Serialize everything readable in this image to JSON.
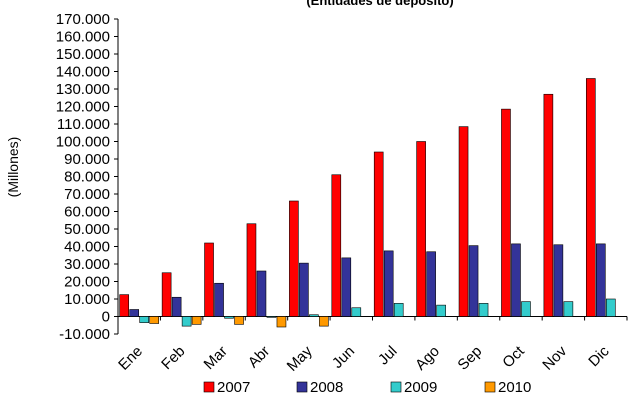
{
  "chart_data": {
    "type": "bar",
    "title": "(Entidades de depósito)",
    "ylabel": "(Millones)",
    "xlabel": "",
    "categories": [
      "Ene",
      "Feb",
      "Mar",
      "Abr",
      "May",
      "Jun",
      "Jul",
      "Ago",
      "Sep",
      "Oct",
      "Nov",
      "Dic"
    ],
    "yticks": [
      "-10.000",
      "0",
      "10.000",
      "20.000",
      "30.000",
      "40.000",
      "50.000",
      "60.000",
      "70.000",
      "80.000",
      "90.000",
      "100.000",
      "110.000",
      "120.000",
      "130.000",
      "140.000",
      "150.000",
      "160.000",
      "170.000"
    ],
    "ylim": [
      -10000,
      170000
    ],
    "grid": false,
    "legend_position": "bottom",
    "series": [
      {
        "name": "2007",
        "color": "#ff0000",
        "values": [
          12500,
          25000,
          42000,
          53000,
          66000,
          81000,
          94000,
          100000,
          108500,
          118500,
          127000,
          136000
        ]
      },
      {
        "name": "2008",
        "color": "#333399",
        "values": [
          4000,
          11000,
          19000,
          26000,
          30500,
          33500,
          37500,
          37000,
          40500,
          41500,
          41000,
          41500
        ]
      },
      {
        "name": "2009",
        "color": "#33cccc",
        "values": [
          -3500,
          -5500,
          -1000,
          -500,
          1000,
          5000,
          7500,
          6500,
          7500,
          8500,
          8500,
          10000
        ]
      },
      {
        "name": "2010",
        "color": "#ff9900",
        "values": [
          -4000,
          -4500,
          -4500,
          -6000,
          -5500,
          null,
          null,
          null,
          null,
          null,
          null,
          null
        ]
      }
    ]
  }
}
